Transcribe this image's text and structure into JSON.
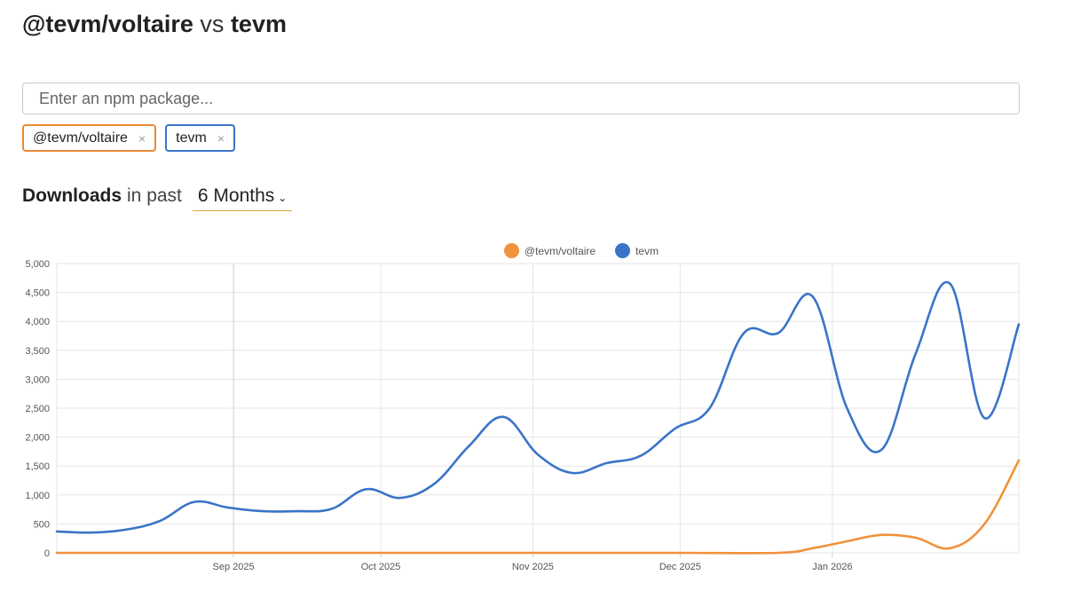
{
  "header": {
    "packages": [
      "@tevm/voltaire",
      "tevm"
    ],
    "vs_label": "vs"
  },
  "search": {
    "placeholder": "Enter an npm package..."
  },
  "chips": [
    {
      "label": "@tevm/voltaire",
      "color": "#e88a36",
      "close": "×"
    },
    {
      "label": "tevm",
      "color": "#3a74c8",
      "close": "×"
    }
  ],
  "downloads": {
    "label": "Downloads",
    "in_past": "in past",
    "period": "6 Months",
    "chevron": "⌄"
  },
  "chart_data": {
    "type": "line",
    "x_ticks": [
      "Sep 2025",
      "Oct 2025",
      "Nov 2025",
      "Dec 2025",
      "Jan 2026"
    ],
    "y_ticks": [
      "0",
      "500",
      "1,000",
      "1,500",
      "2,000",
      "2,500",
      "3,000",
      "3,500",
      "4,000",
      "4,500",
      "5,000"
    ],
    "ylim": [
      0,
      5000
    ],
    "grid": true,
    "legend_position": "top-center",
    "series": [
      {
        "name": "@tevm/voltaire",
        "color": "#f0923c",
        "points": [
          [
            "2025-07-27",
            0
          ],
          [
            "2025-08-10",
            0
          ],
          [
            "2025-09-07",
            0
          ],
          [
            "2025-10-05",
            0
          ],
          [
            "2025-11-02",
            0
          ],
          [
            "2025-11-30",
            0
          ],
          [
            "2025-12-21",
            0
          ],
          [
            "2025-12-28",
            80
          ],
          [
            "2026-01-04",
            200
          ],
          [
            "2026-01-11",
            310
          ],
          [
            "2026-01-18",
            260
          ],
          [
            "2026-01-25",
            80
          ],
          [
            "2026-02-01",
            500
          ],
          [
            "2026-02-08",
            1600
          ]
        ]
      },
      {
        "name": "tevm",
        "color": "#3a74c8",
        "points": [
          [
            "2025-07-27",
            370
          ],
          [
            "2025-08-03",
            350
          ],
          [
            "2025-08-10",
            400
          ],
          [
            "2025-08-17",
            550
          ],
          [
            "2025-08-24",
            880
          ],
          [
            "2025-08-31",
            780
          ],
          [
            "2025-09-07",
            720
          ],
          [
            "2025-09-14",
            720
          ],
          [
            "2025-09-21",
            760
          ],
          [
            "2025-09-28",
            1100
          ],
          [
            "2025-10-05",
            950
          ],
          [
            "2025-10-12",
            1200
          ],
          [
            "2025-10-19",
            1850
          ],
          [
            "2025-10-26",
            2350
          ],
          [
            "2025-11-02",
            1700
          ],
          [
            "2025-11-09",
            1380
          ],
          [
            "2025-11-16",
            1550
          ],
          [
            "2025-11-23",
            1680
          ],
          [
            "2025-11-30",
            2150
          ],
          [
            "2025-12-07",
            2500
          ],
          [
            "2025-12-14",
            3800
          ],
          [
            "2025-12-21",
            3800
          ],
          [
            "2025-12-28",
            4430
          ],
          [
            "2026-01-04",
            2500
          ],
          [
            "2026-01-11",
            1780
          ],
          [
            "2026-01-18",
            3450
          ],
          [
            "2026-01-25",
            4650
          ],
          [
            "2026-02-01",
            2330
          ],
          [
            "2026-02-08",
            3950
          ]
        ]
      }
    ]
  }
}
